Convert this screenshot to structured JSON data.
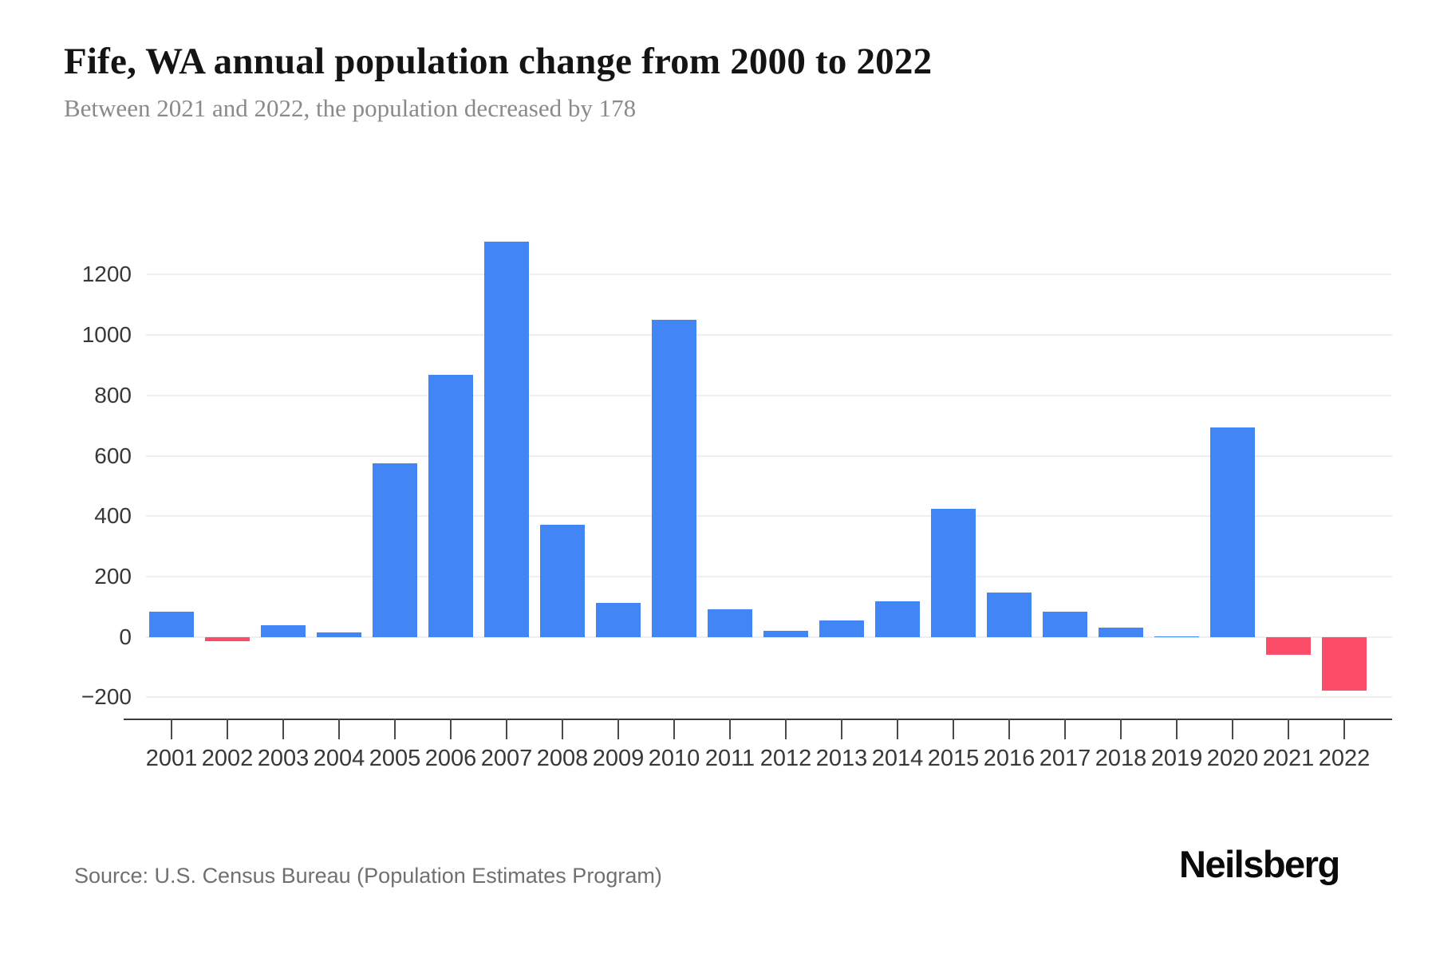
{
  "page": {
    "title": "Fife, WA annual population change from 2000 to 2022",
    "subtitle": "Between 2021 and 2022, the population decreased by 178",
    "source": "Source: U.S. Census Bureau (Population Estimates Program)",
    "brand": "Neilsberg"
  },
  "chart_data": {
    "type": "bar",
    "title": "Fife, WA annual population change from 2000 to 2022",
    "subtitle": "Between 2021 and 2022, the population decreased by 178",
    "xlabel": "",
    "ylabel": "",
    "categories": [
      "2001",
      "2002",
      "2003",
      "2004",
      "2005",
      "2006",
      "2007",
      "2008",
      "2009",
      "2010",
      "2011",
      "2012",
      "2013",
      "2014",
      "2015",
      "2016",
      "2017",
      "2018",
      "2019",
      "2020",
      "2021",
      "2022"
    ],
    "values": [
      85,
      -13,
      40,
      15,
      575,
      870,
      1310,
      372,
      113,
      1052,
      93,
      22,
      56,
      118,
      424,
      148,
      85,
      31,
      2,
      694,
      -57,
      -178
    ],
    "yticks": [
      1200,
      1000,
      800,
      600,
      400,
      200,
      0,
      -200
    ],
    "ytick_labels": [
      "1200",
      "1000",
      "800",
      "600",
      "400",
      "200",
      "0",
      "−200"
    ],
    "ylim": [
      -270,
      1370
    ],
    "grid": true,
    "legend": false,
    "colors": {
      "positive": "#4285f4",
      "negative": "#fb4d67"
    }
  }
}
